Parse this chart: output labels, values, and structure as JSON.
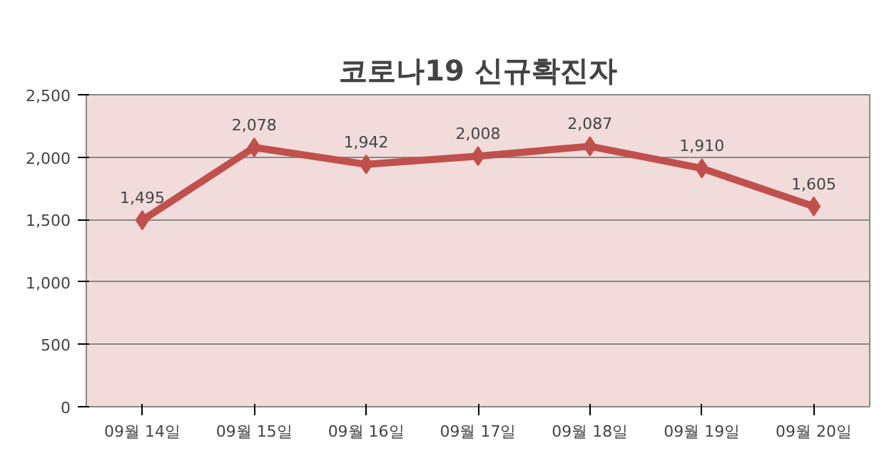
{
  "chart_data": {
    "type": "line",
    "title": "코로나19 신규확진자",
    "categories": [
      "09월 14일",
      "09월 15일",
      "09월 16일",
      "09월 17일",
      "09월 18일",
      "09월 19일",
      "09월 20일"
    ],
    "series": [
      {
        "color": "#c0504d",
        "values": [
          1495,
          2078,
          1942,
          2008,
          2087,
          1910,
          1605
        ],
        "value_labels": [
          "1,495",
          "2,078",
          "1,942",
          "2,008",
          "2,087",
          "1,910",
          "1,605"
        ]
      }
    ],
    "ylim": [
      0,
      2500
    ],
    "yticks": [
      {
        "value": 0,
        "label": "0"
      },
      {
        "value": 500,
        "label": "500"
      },
      {
        "value": 1000,
        "label": "1,000"
      },
      {
        "value": 1500,
        "label": "1,500"
      },
      {
        "value": 2000,
        "label": "2,000"
      },
      {
        "value": 2500,
        "label": "2,500"
      }
    ],
    "grid": "y",
    "marker": "diamond",
    "line_style": "solid"
  }
}
